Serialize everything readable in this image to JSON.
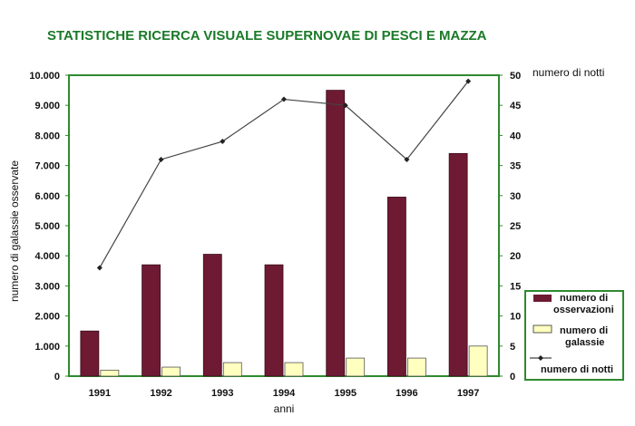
{
  "chart_data": {
    "type": "bar",
    "title": "STATISTICHE RICERCA VISUALE SUPERNOVAE DI PESCI E MAZZA",
    "xlabel": "anni",
    "ylabel": "numero di galassie osservate",
    "y2label": "numero di notti",
    "categories": [
      "1991",
      "1992",
      "1993",
      "1994",
      "1995",
      "1996",
      "1997"
    ],
    "ylim": [
      0,
      10000
    ],
    "yticks": [
      "0",
      "1.000",
      "2.000",
      "3.000",
      "4.000",
      "5.000",
      "6.000",
      "7.000",
      "8.000",
      "9.000",
      "10.000"
    ],
    "y2lim": [
      0,
      50
    ],
    "y2ticks": [
      "0",
      "5",
      "10",
      "15",
      "20",
      "25",
      "30",
      "35",
      "40",
      "45",
      "50"
    ],
    "series": [
      {
        "name": "numero di osservazioni",
        "kind": "bar",
        "axis": "left",
        "color": "#6e1a33",
        "values": [
          1500,
          3700,
          4050,
          3700,
          9500,
          5950,
          7400
        ]
      },
      {
        "name": "numero di galassie",
        "kind": "bar",
        "axis": "left",
        "color": "#ffffc0",
        "values": [
          200,
          300,
          450,
          450,
          600,
          600,
          1000
        ]
      },
      {
        "name": "numero di notti",
        "kind": "line",
        "axis": "right",
        "color": "#444444",
        "values": [
          18,
          36,
          39,
          46,
          45,
          36,
          49
        ]
      }
    ],
    "legend": {
      "position": "right",
      "entries": [
        "numero di osservazioni",
        "numero di galassie",
        "numero di notti"
      ]
    },
    "colors": {
      "frame": "#2e8a2e",
      "title": "#1a7a28"
    },
    "grid": false
  }
}
